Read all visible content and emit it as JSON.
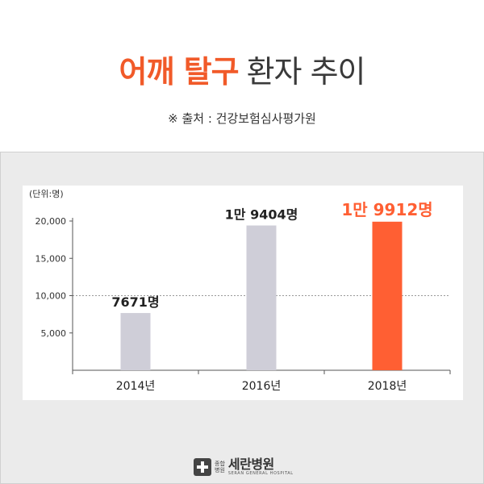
{
  "header": {
    "title_accent": "어깨 탈구",
    "title_rest": "환자 추이",
    "source": "※ 출처 : 건강보험심사평가원"
  },
  "chart_data": {
    "type": "bar",
    "unit_label": "(단위:명)",
    "categories": [
      "2014년",
      "2016년",
      "2018년"
    ],
    "values": [
      7671,
      19404,
      19912
    ],
    "data_labels": [
      "7671명",
      "1만 9404명",
      "1만 9912명"
    ],
    "yticks": [
      "5,000",
      "10,000",
      "15,000",
      "20,000"
    ],
    "ytick_values": [
      5000,
      10000,
      15000,
      20000
    ],
    "ylim": [
      0,
      20000
    ],
    "bar_colors": [
      "#cfced8",
      "#cfced8",
      "#ff5f33"
    ],
    "label_colors": [
      "#222222",
      "#222222",
      "#ff5f33"
    ],
    "reference_line": 10000
  },
  "footer": {
    "logo_small_1": "종합",
    "logo_small_2": "병원",
    "logo_name": "세란병원",
    "logo_sub": "SERAN GENERAL HOSPITAL"
  }
}
